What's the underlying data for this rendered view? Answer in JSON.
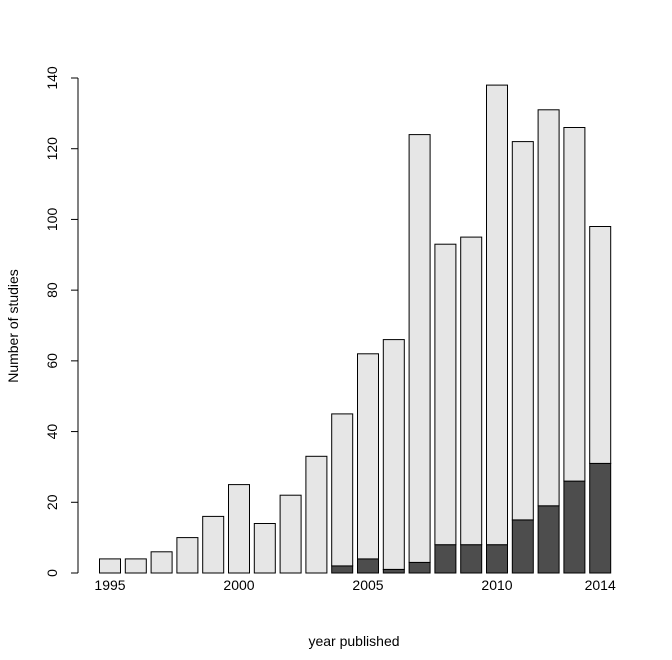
{
  "chart_data": {
    "type": "bar",
    "stacked": true,
    "xlabel": "year published",
    "ylabel": "Number of studies",
    "ylim": [
      0,
      140
    ],
    "yticks": [
      0,
      20,
      40,
      60,
      80,
      100,
      120,
      140
    ],
    "xtick_labels": [
      "1995",
      "2000",
      "2005",
      "2010",
      "2014"
    ],
    "categories": [
      "1995",
      "1996",
      "1997",
      "1998",
      "1999",
      "2000",
      "2001",
      "2002",
      "2003",
      "2004",
      "2005",
      "2006",
      "2007",
      "2008",
      "2009",
      "2010",
      "2011",
      "2012",
      "2013",
      "2014"
    ],
    "totals": [
      4,
      4,
      6,
      10,
      16,
      25,
      14,
      22,
      33,
      45,
      62,
      66,
      124,
      93,
      95,
      138,
      122,
      131,
      126,
      98
    ],
    "series": [
      {
        "values": [
          0,
          0,
          0,
          0,
          0,
          0,
          0,
          0,
          0,
          2,
          4,
          1,
          3,
          8,
          8,
          8,
          15,
          19,
          26,
          31
        ],
        "color": "#4d4d4d"
      },
      {
        "values": [
          4,
          4,
          6,
          10,
          16,
          25,
          14,
          22,
          33,
          43,
          58,
          65,
          121,
          85,
          87,
          130,
          107,
          112,
          100,
          67
        ],
        "color": "#e6e6e6"
      }
    ],
    "grid": false,
    "legend": "none"
  }
}
